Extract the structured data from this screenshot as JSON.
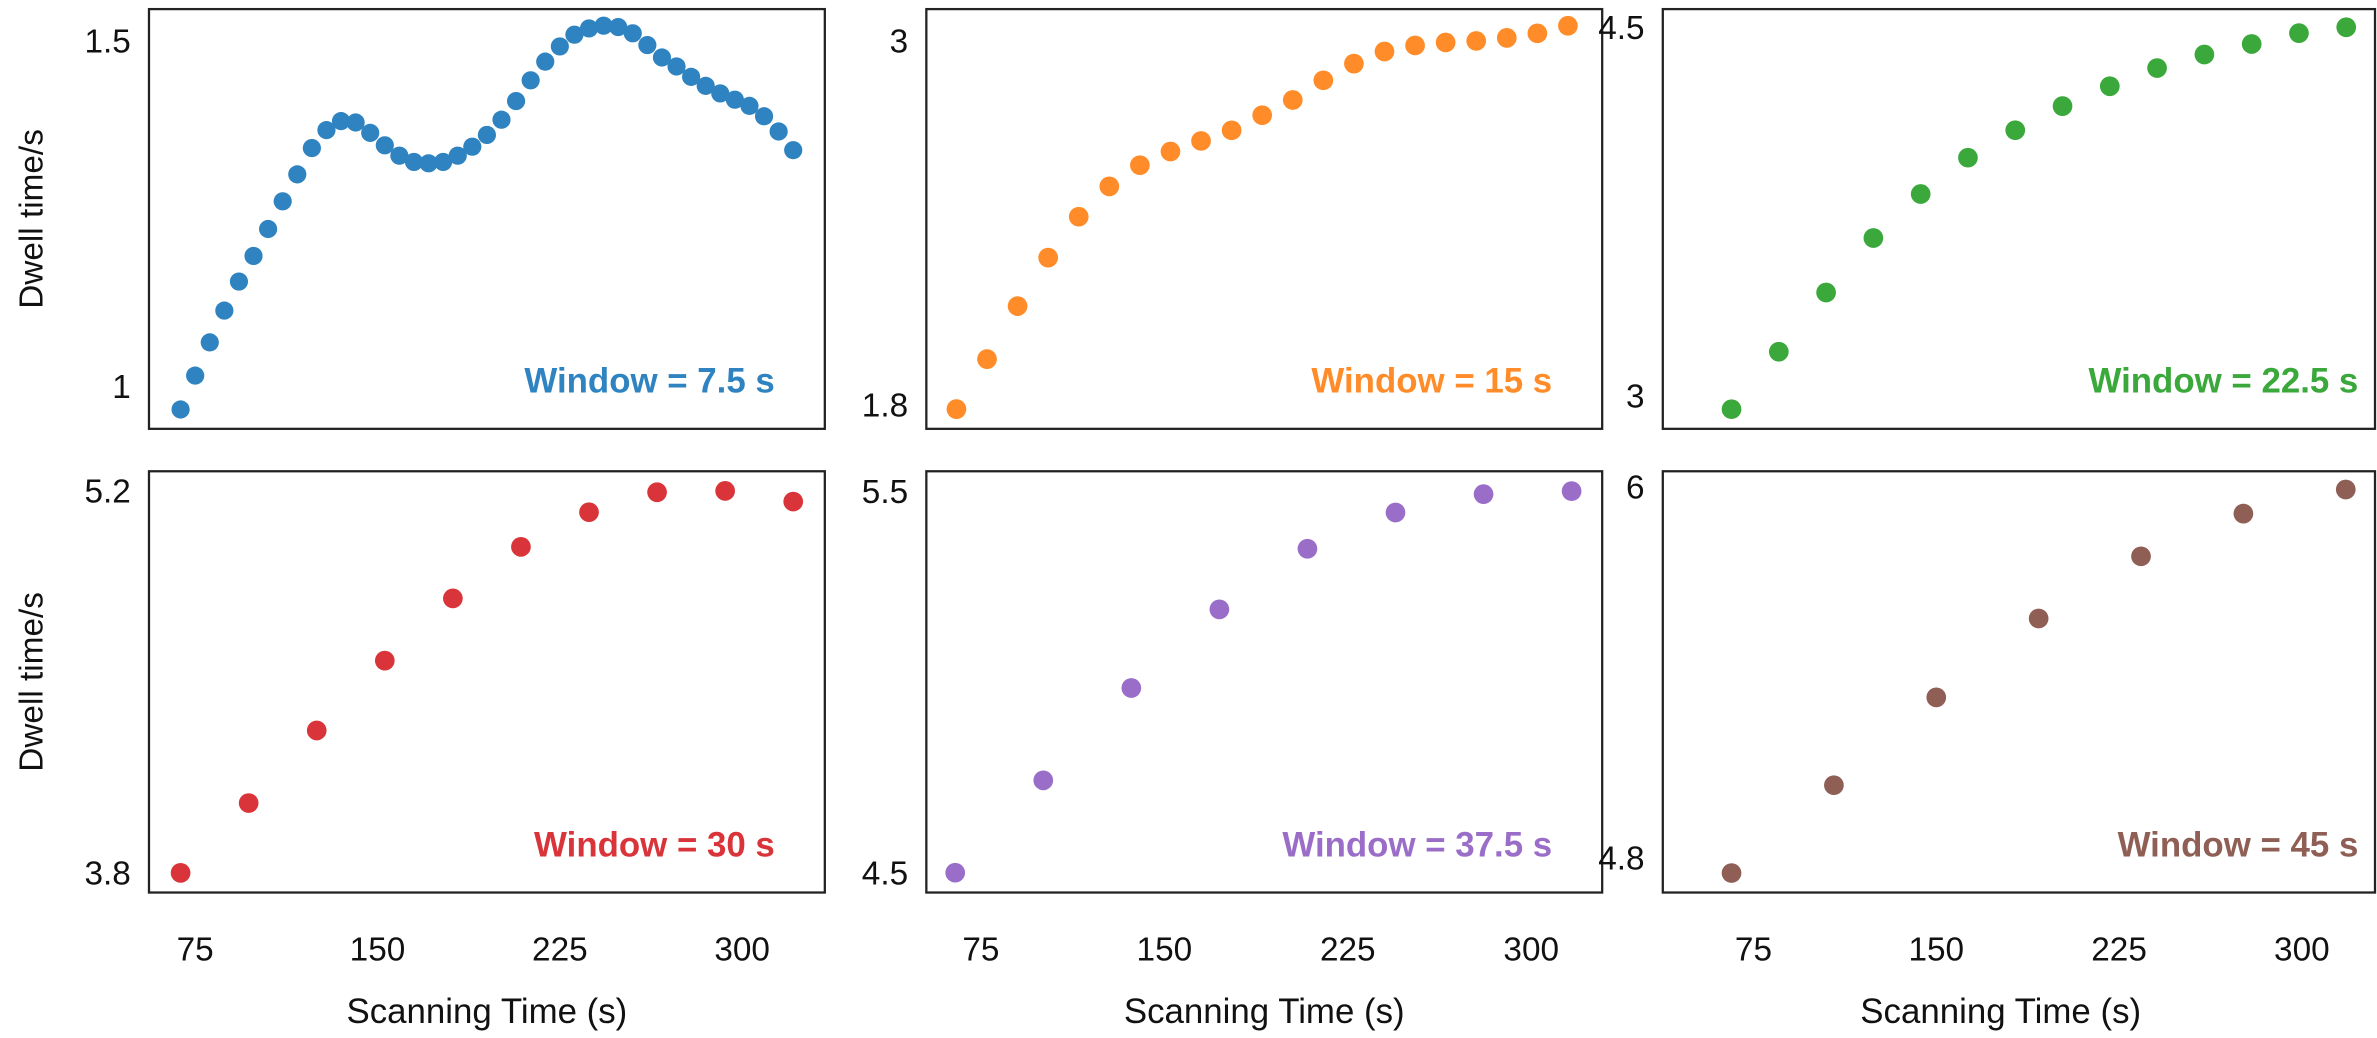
{
  "chart_data": [
    {
      "type": "scatter",
      "annotation": "Window = 7.5 s",
      "color": "#2f83c0",
      "ylabel": "Dwell time/s",
      "x": [
        69,
        75,
        81,
        87,
        93,
        99,
        105,
        111,
        117,
        123,
        129,
        135,
        141,
        147,
        153,
        159,
        165,
        171,
        177,
        183,
        189,
        195,
        201,
        207,
        213,
        219,
        225,
        231,
        237,
        243,
        249,
        255,
        261,
        267,
        273,
        279,
        285,
        291,
        297,
        303,
        309,
        315,
        321
      ],
      "values": [
        0.971,
        1.02,
        1.068,
        1.114,
        1.156,
        1.193,
        1.232,
        1.272,
        1.311,
        1.349,
        1.375,
        1.388,
        1.386,
        1.371,
        1.353,
        1.338,
        1.329,
        1.327,
        1.329,
        1.338,
        1.351,
        1.368,
        1.39,
        1.417,
        1.447,
        1.474,
        1.496,
        1.513,
        1.522,
        1.526,
        1.524,
        1.515,
        1.498,
        1.48,
        1.467,
        1.452,
        1.439,
        1.428,
        1.419,
        1.41,
        1.395,
        1.373,
        1.346
      ],
      "xlim": [
        56,
        334
      ],
      "ylim": [
        0.943,
        1.55
      ],
      "yticks": [
        1.0,
        1.5
      ]
    },
    {
      "type": "scatter",
      "annotation": "Window = 15 s",
      "color": "#ff8c28",
      "x": [
        65,
        77.5,
        90,
        102.5,
        115,
        127.5,
        140,
        152.5,
        165,
        177.5,
        190,
        202.5,
        215,
        227.5,
        240,
        252.5,
        265,
        277.5,
        290,
        302.5,
        315
      ],
      "values": [
        1.795,
        1.96,
        2.135,
        2.295,
        2.43,
        2.53,
        2.6,
        2.645,
        2.68,
        2.715,
        2.765,
        2.815,
        2.88,
        2.935,
        2.975,
        2.995,
        3.005,
        3.01,
        3.02,
        3.035,
        3.06
      ],
      "xlim": [
        52.7,
        329
      ],
      "ylim": [
        1.73,
        3.115
      ],
      "yticks": [
        1.8,
        3.0
      ]
    },
    {
      "type": "scatter",
      "annotation": "Window = 22.5 s",
      "color": "#3aa83a",
      "x": [
        66,
        85.4,
        104.8,
        124.2,
        143.6,
        163,
        182.4,
        201.8,
        221.2,
        240.6,
        260,
        279.4,
        298.8,
        318.2
      ],
      "values": [
        2.957,
        3.191,
        3.432,
        3.654,
        3.833,
        3.981,
        4.093,
        4.191,
        4.272,
        4.346,
        4.401,
        4.444,
        4.488,
        4.512
      ],
      "xlim": [
        37.8,
        330
      ],
      "ylim": [
        2.877,
        4.586
      ],
      "yticks": [
        3.0,
        4.5
      ]
    },
    {
      "type": "scatter",
      "annotation": "Window = 30 s",
      "color": "#d9343a",
      "ylabel": "Dwell time/s",
      "xlabel": "Scanning Time (s)",
      "x": [
        69,
        97,
        125,
        153,
        181,
        209,
        237,
        265,
        293,
        321
      ],
      "values": [
        3.811,
        4.067,
        4.333,
        4.589,
        4.817,
        5.006,
        5.133,
        5.206,
        5.211,
        5.172
      ],
      "xlim": [
        56,
        334
      ],
      "ylim": [
        3.739,
        5.283
      ],
      "yticks": [
        3.8,
        5.2
      ],
      "xticks": [
        75,
        150,
        225,
        300
      ]
    },
    {
      "type": "scatter",
      "annotation": "Window = 37.5 s",
      "color": "#9a6ec8",
      "xlabel": "Scanning Time (s)",
      "x": [
        64.5,
        100.5,
        136.5,
        172.5,
        208.5,
        244.5,
        280.5,
        316.5
      ],
      "values": [
        4.508,
        4.75,
        4.992,
        5.198,
        5.357,
        5.452,
        5.5,
        5.508
      ],
      "xlim": [
        52.7,
        329
      ],
      "ylim": [
        4.456,
        5.56
      ],
      "yticks": [
        4.5,
        5.5
      ],
      "xticks": [
        75,
        150,
        225,
        300
      ]
    },
    {
      "type": "scatter",
      "annotation": "Window = 45 s",
      "color": "#8f5e55",
      "xlabel": "Scanning Time (s)",
      "x": [
        66,
        108,
        150,
        192,
        234,
        276,
        318
      ],
      "values": [
        4.76,
        5.044,
        5.328,
        5.583,
        5.784,
        5.922,
        6.0
      ],
      "xlim": [
        37.8,
        330
      ],
      "ylim": [
        4.697,
        6.059
      ],
      "yticks": [
        4.8,
        6.0
      ],
      "xticks": [
        75,
        150,
        225,
        300
      ]
    }
  ]
}
